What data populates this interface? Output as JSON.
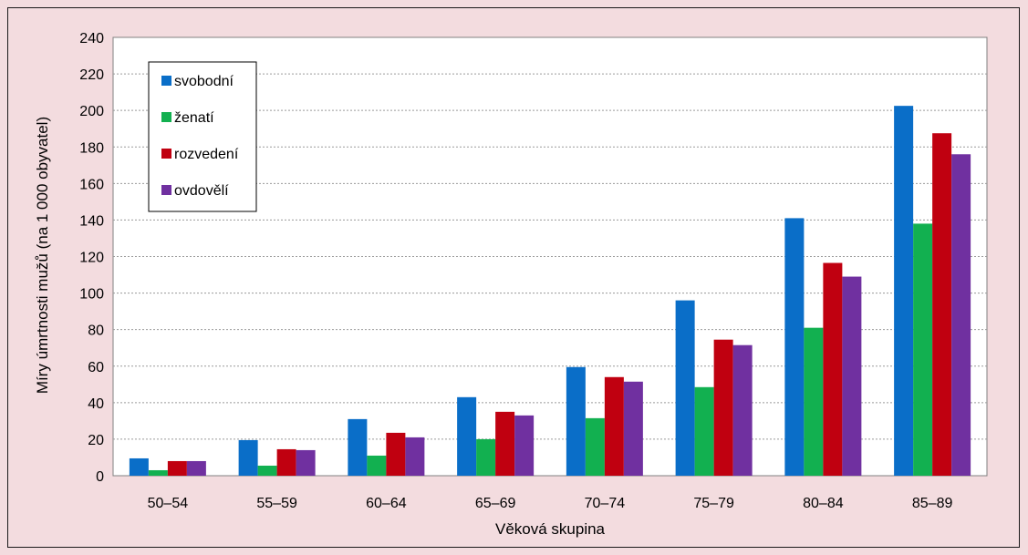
{
  "chart_data": {
    "type": "bar",
    "title": "",
    "xlabel": "Věková skupina",
    "ylabel": "Míry úmrtnosti mužů (na 1 000 obyvatel)",
    "ylim": [
      0,
      240
    ],
    "yticks": [
      0,
      20,
      40,
      60,
      80,
      100,
      120,
      140,
      160,
      180,
      200,
      220,
      240
    ],
    "grid": true,
    "legend_position": "top-left",
    "categories": [
      "50–54",
      "55–59",
      "60–64",
      "65–69",
      "70–74",
      "75–79",
      "80–84",
      "85–89"
    ],
    "series": [
      {
        "name": "svobodní",
        "color": "#0a6ec8",
        "values": [
          9.5,
          19.5,
          31,
          43,
          59.5,
          96,
          141,
          202.5
        ]
      },
      {
        "name": "ženatí",
        "color": "#12b050",
        "values": [
          3,
          5.5,
          11,
          20,
          31.5,
          48.5,
          81,
          138
        ]
      },
      {
        "name": "rozvedení",
        "color": "#c00010",
        "values": [
          8,
          14.5,
          23.5,
          35,
          54,
          74.5,
          116.5,
          187.5
        ]
      },
      {
        "name": "ovdovělí",
        "color": "#7030a0",
        "values": [
          8,
          14,
          21,
          33,
          51.5,
          71.5,
          109,
          176
        ]
      }
    ]
  }
}
